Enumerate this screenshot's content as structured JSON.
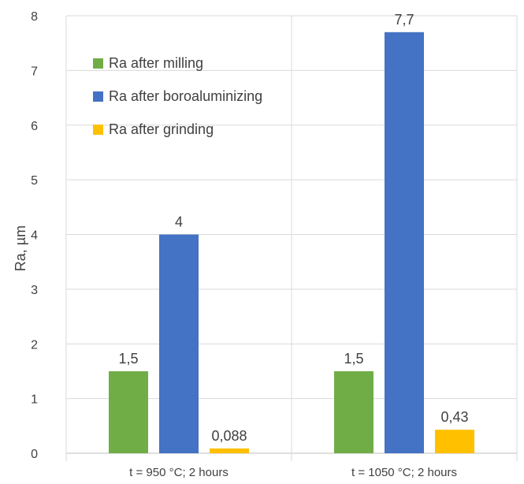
{
  "chart_data": {
    "type": "bar",
    "title": "",
    "xlabel": "",
    "ylabel": "Ra, µm",
    "ylim": [
      0,
      8
    ],
    "yticks": [
      0,
      1,
      2,
      3,
      4,
      5,
      6,
      7,
      8
    ],
    "grid": true,
    "legend_position": "top-left",
    "categories": [
      "t = 950 °C; 2 hours",
      "t = 1050 °C; 2 hours"
    ],
    "series": [
      {
        "name": "Ra after milling",
        "color": "#70ad47",
        "values": [
          1.5,
          1.5
        ],
        "labels": [
          "1,5",
          "1,5"
        ]
      },
      {
        "name": "Ra after boroaluminizing",
        "color": "#4472c4",
        "values": [
          4,
          7.7
        ],
        "labels": [
          "4",
          "7,7"
        ]
      },
      {
        "name": "Ra after grinding",
        "color": "#ffc000",
        "values": [
          0.088,
          0.43
        ],
        "labels": [
          "0,088",
          "0,43"
        ]
      }
    ]
  }
}
